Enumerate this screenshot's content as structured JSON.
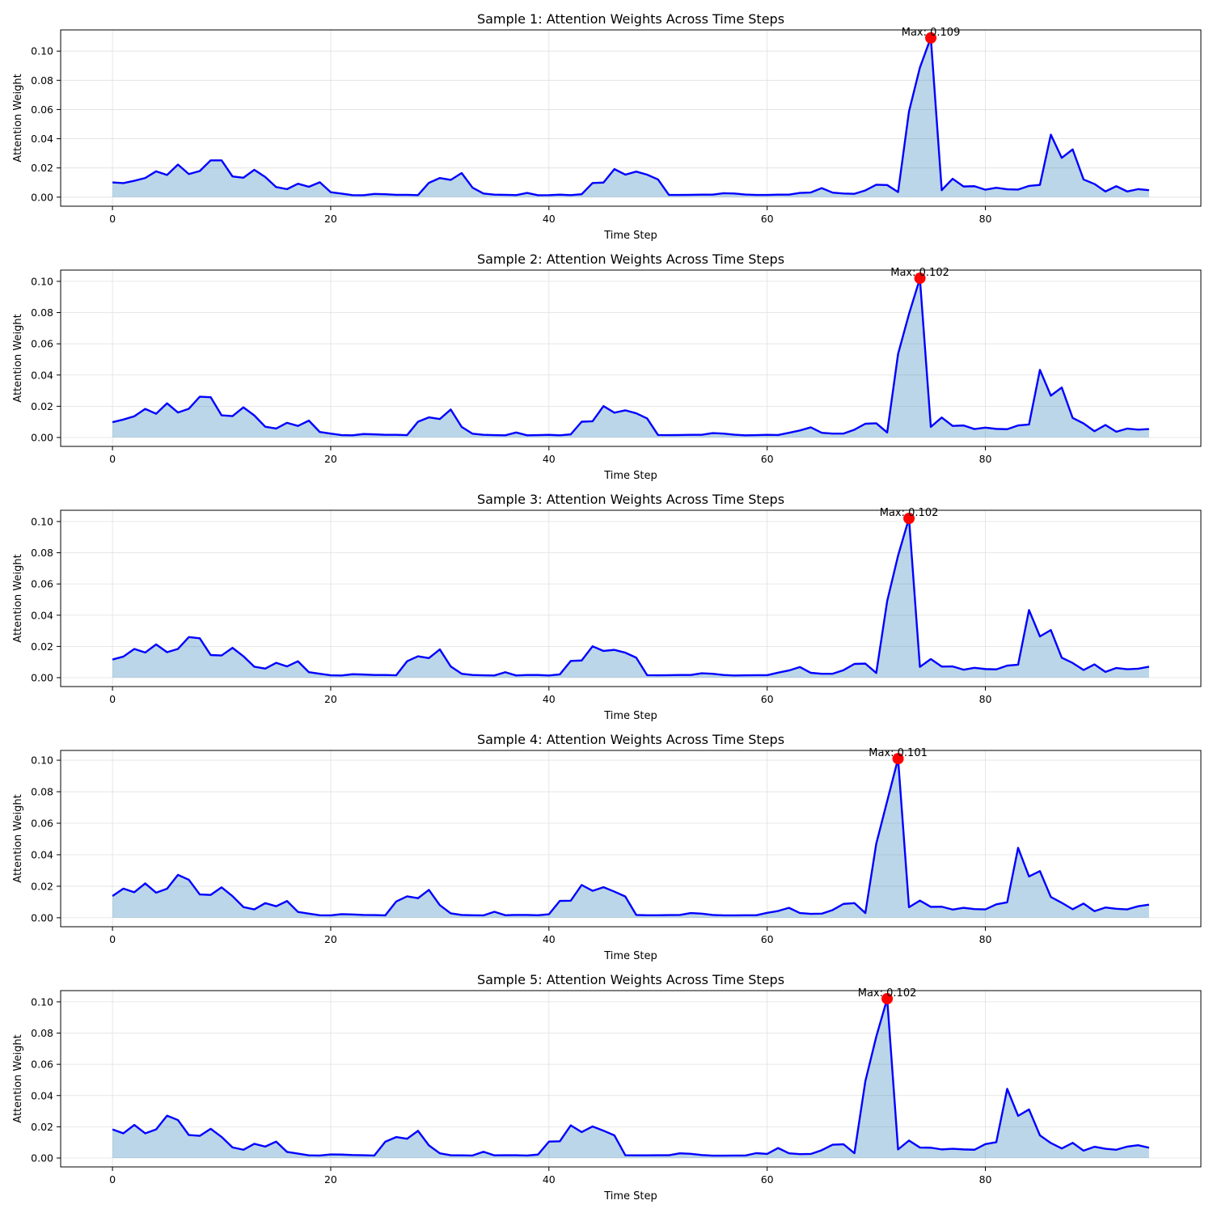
{
  "chart_data": [
    {
      "type": "area",
      "title": "Sample 1: Attention Weights Across Time Steps",
      "xlabel": "Time Step",
      "ylabel": "Attention Weight",
      "xlim": [
        -4.75,
        99.75
      ],
      "ylim": [
        -0.0062,
        0.1145
      ],
      "xticks": [
        0,
        20,
        40,
        60,
        80
      ],
      "yticks": [
        0.0,
        0.02,
        0.04,
        0.06,
        0.08,
        0.1
      ],
      "ytick_labels": [
        "0.00",
        "0.02",
        "0.04",
        "0.06",
        "0.08",
        "0.10"
      ],
      "grid": true,
      "series": [
        {
          "values": [
            0.0101,
            0.0096,
            0.0112,
            0.0131,
            0.0177,
            0.0152,
            0.0223,
            0.0158,
            0.0179,
            0.0252,
            0.0252,
            0.0142,
            0.0133,
            0.0187,
            0.0138,
            0.0069,
            0.0055,
            0.0092,
            0.0071,
            0.0102,
            0.0034,
            0.0024,
            0.0014,
            0.0013,
            0.0022,
            0.002,
            0.0016,
            0.0016,
            0.0014,
            0.0098,
            0.0131,
            0.0118,
            0.0165,
            0.0065,
            0.0025,
            0.0017,
            0.0016,
            0.0014,
            0.0029,
            0.0013,
            0.0014,
            0.0017,
            0.0014,
            0.002,
            0.0097,
            0.01,
            0.0192,
            0.0154,
            0.0175,
            0.0154,
            0.0121,
            0.0015,
            0.0015,
            0.0016,
            0.0017,
            0.0017,
            0.0027,
            0.0025,
            0.0018,
            0.0015,
            0.0015,
            0.0017,
            0.0017,
            0.0029,
            0.0032,
            0.0062,
            0.0031,
            0.0025,
            0.0023,
            0.0046,
            0.0085,
            0.0083,
            0.0035,
            0.0587,
            0.0887,
            0.1092,
            0.0048,
            0.0126,
            0.0073,
            0.0075,
            0.0051,
            0.0064,
            0.0054,
            0.0052,
            0.0077,
            0.0084,
            0.0428,
            0.0269,
            0.0327,
            0.0121,
            0.009,
            0.0039,
            0.0075,
            0.0039,
            0.0055,
            0.0048
          ]
        }
      ],
      "max": {
        "x": 75,
        "y": 0.109,
        "label": "Max: 0.109"
      }
    },
    {
      "type": "area",
      "title": "Sample 2: Attention Weights Across Time Steps",
      "xlabel": "Time Step",
      "ylabel": "Attention Weight",
      "xlim": [
        -4.75,
        99.75
      ],
      "ylim": [
        -0.0057,
        0.1072
      ],
      "xticks": [
        0,
        20,
        40,
        60,
        80
      ],
      "yticks": [
        0.0,
        0.02,
        0.04,
        0.06,
        0.08,
        0.1
      ],
      "ytick_labels": [
        "0.00",
        "0.02",
        "0.04",
        "0.06",
        "0.08",
        "0.10"
      ],
      "grid": true,
      "series": [
        {
          "values": [
            0.0098,
            0.0115,
            0.0136,
            0.0183,
            0.0152,
            0.0219,
            0.016,
            0.0184,
            0.0261,
            0.0258,
            0.0142,
            0.0137,
            0.0193,
            0.0141,
            0.0069,
            0.0057,
            0.0094,
            0.0074,
            0.0108,
            0.0035,
            0.0025,
            0.0015,
            0.0014,
            0.0022,
            0.002,
            0.0017,
            0.0017,
            0.0015,
            0.0101,
            0.0129,
            0.0118,
            0.0179,
            0.0068,
            0.0024,
            0.0017,
            0.0015,
            0.0014,
            0.0032,
            0.0014,
            0.0015,
            0.0017,
            0.0014,
            0.002,
            0.0101,
            0.0104,
            0.0201,
            0.0159,
            0.0174,
            0.0155,
            0.0122,
            0.0016,
            0.0015,
            0.0016,
            0.0017,
            0.0017,
            0.0028,
            0.0025,
            0.0018,
            0.0014,
            0.0015,
            0.0017,
            0.0016,
            0.003,
            0.0045,
            0.0065,
            0.003,
            0.0025,
            0.0025,
            0.005,
            0.0088,
            0.0091,
            0.0032,
            0.0535,
            0.0791,
            0.1018,
            0.0068,
            0.0128,
            0.0074,
            0.0077,
            0.0054,
            0.0063,
            0.0055,
            0.0053,
            0.0077,
            0.0083,
            0.0433,
            0.0268,
            0.032,
            0.0125,
            0.009,
            0.004,
            0.008,
            0.0037,
            0.0057,
            0.005,
            0.0054
          ]
        }
      ],
      "max": {
        "x": 74,
        "y": 0.102,
        "label": "Max: 0.102"
      }
    },
    {
      "type": "area",
      "title": "Sample 3: Attention Weights Across Time Steps",
      "xlabel": "Time Step",
      "ylabel": "Attention Weight",
      "xlim": [
        -4.75,
        99.75
      ],
      "ylim": [
        -0.0057,
        0.1072
      ],
      "xticks": [
        0,
        20,
        40,
        60,
        80
      ],
      "yticks": [
        0.0,
        0.02,
        0.04,
        0.06,
        0.08,
        0.1
      ],
      "ytick_labels": [
        "0.00",
        "0.02",
        "0.04",
        "0.06",
        "0.08",
        "0.10"
      ],
      "grid": true,
      "series": [
        {
          "values": [
            0.0116,
            0.0135,
            0.0184,
            0.0161,
            0.0213,
            0.0163,
            0.0184,
            0.026,
            0.0252,
            0.0145,
            0.0142,
            0.0191,
            0.0137,
            0.007,
            0.0058,
            0.0095,
            0.0072,
            0.0105,
            0.0035,
            0.0025,
            0.0015,
            0.0014,
            0.0022,
            0.002,
            0.0017,
            0.0017,
            0.0015,
            0.0105,
            0.0137,
            0.0125,
            0.0181,
            0.0072,
            0.0025,
            0.0017,
            0.0015,
            0.0014,
            0.0035,
            0.0014,
            0.0017,
            0.0017,
            0.0014,
            0.0021,
            0.0107,
            0.011,
            0.0201,
            0.0171,
            0.0178,
            0.016,
            0.0128,
            0.0016,
            0.0015,
            0.0016,
            0.0017,
            0.0017,
            0.0028,
            0.0025,
            0.0017,
            0.0014,
            0.0015,
            0.0016,
            0.0016,
            0.0032,
            0.0046,
            0.0068,
            0.0031,
            0.0025,
            0.0025,
            0.0048,
            0.0088,
            0.009,
            0.003,
            0.049,
            0.0782,
            0.1021,
            0.0069,
            0.0119,
            0.0071,
            0.0072,
            0.0051,
            0.0063,
            0.0055,
            0.0053,
            0.0077,
            0.0083,
            0.0433,
            0.0264,
            0.0305,
            0.0128,
            0.0094,
            0.0049,
            0.0085,
            0.0037,
            0.0062,
            0.0054,
            0.0057,
            0.007
          ]
        }
      ],
      "max": {
        "x": 73,
        "y": 0.102,
        "label": "Max: 0.102"
      }
    },
    {
      "type": "area",
      "title": "Sample 4: Attention Weights Across Time Steps",
      "xlabel": "Time Step",
      "ylabel": "Attention Weight",
      "xlim": [
        -4.75,
        99.75
      ],
      "ylim": [
        -0.0057,
        0.1062
      ],
      "xticks": [
        0,
        20,
        40,
        60,
        80
      ],
      "yticks": [
        0.0,
        0.02,
        0.04,
        0.06,
        0.08,
        0.1
      ],
      "ytick_labels": [
        "0.00",
        "0.02",
        "0.04",
        "0.06",
        "0.08",
        "0.10"
      ],
      "grid": true,
      "series": [
        {
          "values": [
            0.0138,
            0.0185,
            0.0162,
            0.0218,
            0.0159,
            0.0184,
            0.0272,
            0.0241,
            0.0148,
            0.0145,
            0.0193,
            0.0137,
            0.0068,
            0.0053,
            0.0093,
            0.0073,
            0.0106,
            0.0037,
            0.0026,
            0.0016,
            0.0015,
            0.0023,
            0.0021,
            0.0018,
            0.0017,
            0.0015,
            0.0103,
            0.0136,
            0.0124,
            0.0177,
            0.008,
            0.0028,
            0.0018,
            0.0016,
            0.0015,
            0.0038,
            0.0016,
            0.0018,
            0.0018,
            0.0016,
            0.0022,
            0.0107,
            0.0108,
            0.0208,
            0.0171,
            0.0194,
            0.0166,
            0.0135,
            0.0018,
            0.0016,
            0.0016,
            0.0017,
            0.0018,
            0.003,
            0.0026,
            0.0018,
            0.0015,
            0.0015,
            0.0016,
            0.0016,
            0.0031,
            0.0043,
            0.0063,
            0.003,
            0.0025,
            0.0026,
            0.0049,
            0.0088,
            0.0093,
            0.003,
            0.047,
            0.074,
            0.1009,
            0.0067,
            0.0109,
            0.0069,
            0.007,
            0.0052,
            0.0063,
            0.0055,
            0.0053,
            0.0085,
            0.0098,
            0.0444,
            0.0262,
            0.0296,
            0.0132,
            0.0095,
            0.0054,
            0.009,
            0.0042,
            0.0065,
            0.0057,
            0.0053,
            0.0073,
            0.0083
          ]
        }
      ],
      "max": {
        "x": 72,
        "y": 0.101,
        "label": "Max: 0.101"
      }
    },
    {
      "type": "area",
      "title": "Sample 5: Attention Weights Across Time Steps",
      "xlabel": "Time Step",
      "ylabel": "Attention Weight",
      "xlim": [
        -4.75,
        99.75
      ],
      "ylim": [
        -0.0057,
        0.1072
      ],
      "xticks": [
        0,
        20,
        40,
        60,
        80
      ],
      "yticks": [
        0.0,
        0.02,
        0.04,
        0.06,
        0.08,
        0.1
      ],
      "ytick_labels": [
        "0.00",
        "0.02",
        "0.04",
        "0.06",
        "0.08",
        "0.10"
      ],
      "grid": true,
      "series": [
        {
          "values": [
            0.0183,
            0.0158,
            0.0212,
            0.0158,
            0.0183,
            0.0271,
            0.0243,
            0.0147,
            0.0142,
            0.0187,
            0.0135,
            0.0068,
            0.0053,
            0.0091,
            0.0073,
            0.0105,
            0.0039,
            0.0028,
            0.0017,
            0.0016,
            0.0023,
            0.0022,
            0.0019,
            0.0018,
            0.0016,
            0.0104,
            0.0134,
            0.0123,
            0.0174,
            0.0081,
            0.003,
            0.0018,
            0.0017,
            0.0016,
            0.004,
            0.0017,
            0.0018,
            0.0018,
            0.0016,
            0.0022,
            0.0105,
            0.0107,
            0.0209,
            0.0166,
            0.0202,
            0.0175,
            0.0145,
            0.0018,
            0.0017,
            0.0017,
            0.0018,
            0.0018,
            0.003,
            0.0027,
            0.0019,
            0.0015,
            0.0015,
            0.0016,
            0.0016,
            0.0031,
            0.0026,
            0.0064,
            0.003,
            0.0025,
            0.0026,
            0.005,
            0.0085,
            0.0088,
            0.0031,
            0.0492,
            0.0777,
            0.102,
            0.0055,
            0.0112,
            0.0067,
            0.0066,
            0.0055,
            0.0059,
            0.0055,
            0.0053,
            0.0089,
            0.0101,
            0.0443,
            0.027,
            0.0311,
            0.0145,
            0.0096,
            0.0061,
            0.0097,
            0.0047,
            0.0072,
            0.0059,
            0.0053,
            0.0073,
            0.0082,
            0.0066
          ]
        }
      ],
      "max": {
        "x": 71,
        "y": 0.102,
        "label": "Max: 0.102"
      }
    }
  ]
}
